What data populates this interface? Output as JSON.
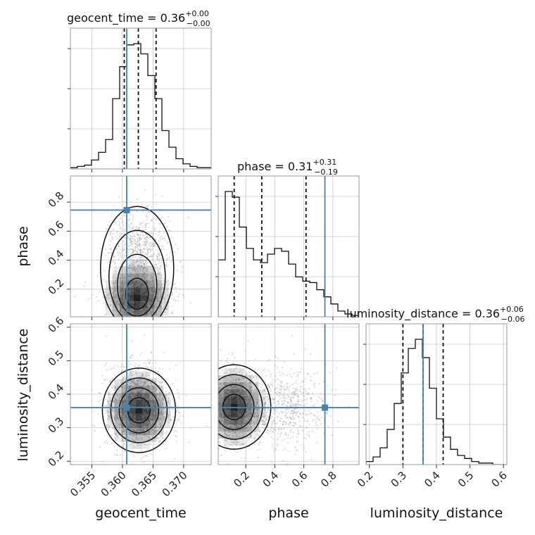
{
  "chart_data": {
    "type": "corner",
    "parameters": [
      "geocent_time",
      "phase",
      "luminosity_distance"
    ],
    "axis_labels": [
      "geocent_time",
      "phase",
      "luminosity_distance"
    ],
    "ranges": [
      [
        0.3515,
        0.3745
      ],
      [
        0.01,
        0.98
      ],
      [
        0.19,
        0.61
      ]
    ],
    "truths": [
      0.3607,
      0.745,
      0.36
    ],
    "ticks": {
      "geocent_time": [
        "0.355",
        "0.360",
        "0.365",
        "0.370"
      ],
      "phase": [
        "0.2",
        "0.4",
        "0.6",
        "0.8"
      ],
      "luminosity_distance": [
        "0.2",
        "0.3",
        "0.4",
        "0.5",
        "0.6"
      ]
    },
    "titles": [
      {
        "param": "geocent_time",
        "text": "geocent_time = 0.36",
        "sup": "+0.00",
        "sub": "−0.00"
      },
      {
        "param": "phase",
        "text": "phase = 0.31",
        "sup": "+0.31",
        "sub": "−0.19"
      },
      {
        "param": "luminosity_distance",
        "text": "luminosity_distance = 0.36",
        "sup": "+0.06",
        "sub": "−0.06"
      }
    ],
    "marginals": [
      {
        "param": "geocent_time",
        "range": [
          0.3515,
          0.3745
        ],
        "quantiles": [
          0.3603,
          0.3626,
          0.3655
        ],
        "counts": [
          1,
          2,
          3,
          7,
          13,
          23,
          55,
          80,
          97,
          98,
          90,
          73,
          55,
          30,
          17,
          8,
          4,
          2,
          1,
          1
        ]
      },
      {
        "param": "phase",
        "range": [
          0.01,
          0.98
        ],
        "quantiles": [
          0.12,
          0.31,
          0.615
        ],
        "counts": [
          40,
          88,
          84,
          63,
          48,
          40,
          38,
          44,
          48,
          46,
          37,
          28,
          25,
          24,
          19,
          14,
          9,
          4,
          2,
          1
        ]
      },
      {
        "param": "luminosity_distance",
        "range": [
          0.19,
          0.61
        ],
        "quantiles": [
          0.3,
          0.36,
          0.42
        ],
        "counts": [
          2,
          5,
          11,
          23,
          40,
          60,
          76,
          82,
          70,
          50,
          30,
          18,
          10,
          6,
          4,
          2,
          1,
          1,
          0,
          0
        ]
      }
    ],
    "joint": [
      {
        "x": "geocent_time",
        "y": "phase",
        "peak": [
          0.3624,
          0.14
        ],
        "contour_levels": 4,
        "note": ""
      },
      {
        "x": "geocent_time",
        "y": "luminosity_distance",
        "peak": [
          0.3627,
          0.352
        ],
        "contour_levels": 4
      },
      {
        "x": "phase",
        "y": "luminosity_distance",
        "peak": [
          0.12,
          0.362
        ],
        "contour_levels": 4
      }
    ],
    "colors": {
      "truth": "#4682b4",
      "hist": "#111111",
      "samples": "#9a9a9a"
    }
  }
}
